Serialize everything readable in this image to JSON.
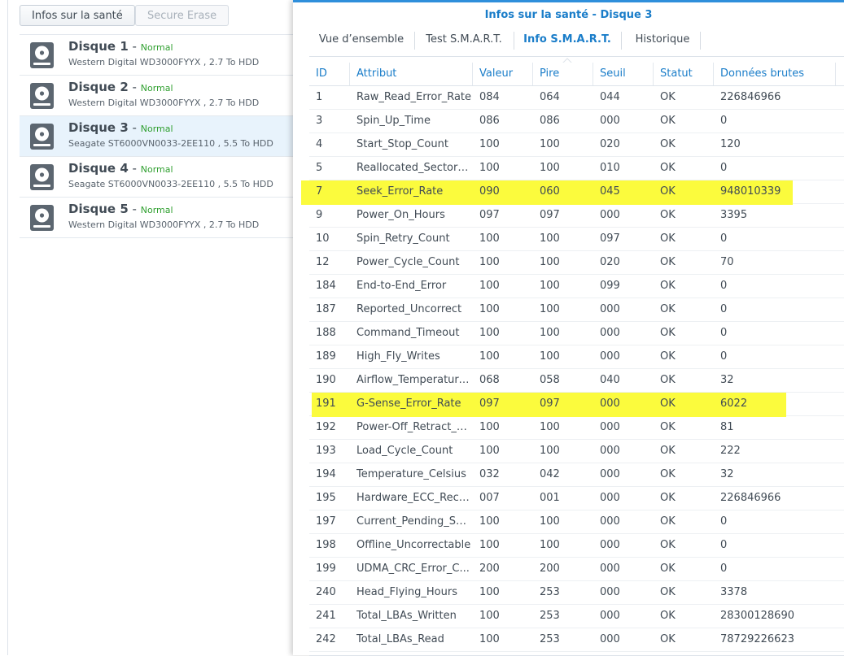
{
  "toolbar": {
    "health_info_label": "Infos sur la santé",
    "secure_erase_label": "Secure Erase"
  },
  "disks": [
    {
      "name": "Disque 1",
      "sep": " - ",
      "status": "Normal",
      "details": "Western Digital WD3000FYYX , 2.7 To HDD",
      "selected": false
    },
    {
      "name": "Disque 2",
      "sep": " - ",
      "status": "Normal",
      "details": "Western Digital WD3000FYYX , 2.7 To HDD",
      "selected": false
    },
    {
      "name": "Disque 3",
      "sep": " - ",
      "status": "Normal",
      "details": "Seagate ST6000VN0033-2EE110 , 5.5 To HDD",
      "selected": true
    },
    {
      "name": "Disque 4",
      "sep": " - ",
      "status": "Normal",
      "details": "Seagate ST6000VN0033-2EE110 , 5.5 To HDD",
      "selected": false
    },
    {
      "name": "Disque 5",
      "sep": " - ",
      "status": "Normal",
      "details": "Western Digital WD3000FYYX , 2.7 To HDD",
      "selected": false
    }
  ],
  "dialog": {
    "title": "Infos sur la santé - Disque 3",
    "tabs": [
      {
        "label": "Vue d’ensemble",
        "active": false
      },
      {
        "label": "Test S.M.A.R.T.",
        "active": false
      },
      {
        "label": "Info S.M.A.R.T.",
        "active": true
      },
      {
        "label": "Historique",
        "active": false
      }
    ]
  },
  "table": {
    "columns": [
      "ID",
      "Attribut",
      "Valeur",
      "Pire",
      "Seuil",
      "Statut",
      "Données brutes"
    ],
    "rows": [
      [
        "1",
        "Raw_Read_Error_Rate",
        "084",
        "064",
        "044",
        "OK",
        "226846966"
      ],
      [
        "3",
        "Spin_Up_Time",
        "086",
        "086",
        "000",
        "OK",
        "0"
      ],
      [
        "4",
        "Start_Stop_Count",
        "100",
        "100",
        "020",
        "OK",
        "120"
      ],
      [
        "5",
        "Reallocated_Sector_Ct",
        "100",
        "100",
        "010",
        "OK",
        "0"
      ],
      [
        "7",
        "Seek_Error_Rate",
        "090",
        "060",
        "045",
        "OK",
        "948010339"
      ],
      [
        "9",
        "Power_On_Hours",
        "097",
        "097",
        "000",
        "OK",
        "3395"
      ],
      [
        "10",
        "Spin_Retry_Count",
        "100",
        "100",
        "097",
        "OK",
        "0"
      ],
      [
        "12",
        "Power_Cycle_Count",
        "100",
        "100",
        "020",
        "OK",
        "70"
      ],
      [
        "184",
        "End-to-End_Error",
        "100",
        "100",
        "099",
        "OK",
        "0"
      ],
      [
        "187",
        "Reported_Uncorrect",
        "100",
        "100",
        "000",
        "OK",
        "0"
      ],
      [
        "188",
        "Command_Timeout",
        "100",
        "100",
        "000",
        "OK",
        "0"
      ],
      [
        "189",
        "High_Fly_Writes",
        "100",
        "100",
        "000",
        "OK",
        "0"
      ],
      [
        "190",
        "Airflow_Temperature...",
        "068",
        "058",
        "040",
        "OK",
        "32"
      ],
      [
        "191",
        "G-Sense_Error_Rate",
        "097",
        "097",
        "000",
        "OK",
        "6022"
      ],
      [
        "192",
        "Power-Off_Retract_C...",
        "100",
        "100",
        "000",
        "OK",
        "81"
      ],
      [
        "193",
        "Load_Cycle_Count",
        "100",
        "100",
        "000",
        "OK",
        "222"
      ],
      [
        "194",
        "Temperature_Celsius",
        "032",
        "042",
        "000",
        "OK",
        "32"
      ],
      [
        "195",
        "Hardware_ECC_Reco...",
        "007",
        "001",
        "000",
        "OK",
        "226846966"
      ],
      [
        "197",
        "Current_Pending_Sec...",
        "100",
        "100",
        "000",
        "OK",
        "0"
      ],
      [
        "198",
        "Offline_Uncorrectable",
        "100",
        "100",
        "000",
        "OK",
        "0"
      ],
      [
        "199",
        "UDMA_CRC_Error_C...",
        "200",
        "200",
        "000",
        "OK",
        "0"
      ],
      [
        "240",
        "Head_Flying_Hours",
        "100",
        "253",
        "000",
        "OK",
        "3378"
      ],
      [
        "241",
        "Total_LBAs_Written",
        "100",
        "253",
        "000",
        "OK",
        "28300128690"
      ],
      [
        "242",
        "Total_LBAs_Read",
        "100",
        "253",
        "000",
        "OK",
        "78729226623"
      ]
    ],
    "highlighted_rows": [
      4,
      13
    ],
    "highlight_color": "#fbfb3d",
    "accent_color": "#1a7dc9",
    "status_color": "#2f9f2f"
  }
}
